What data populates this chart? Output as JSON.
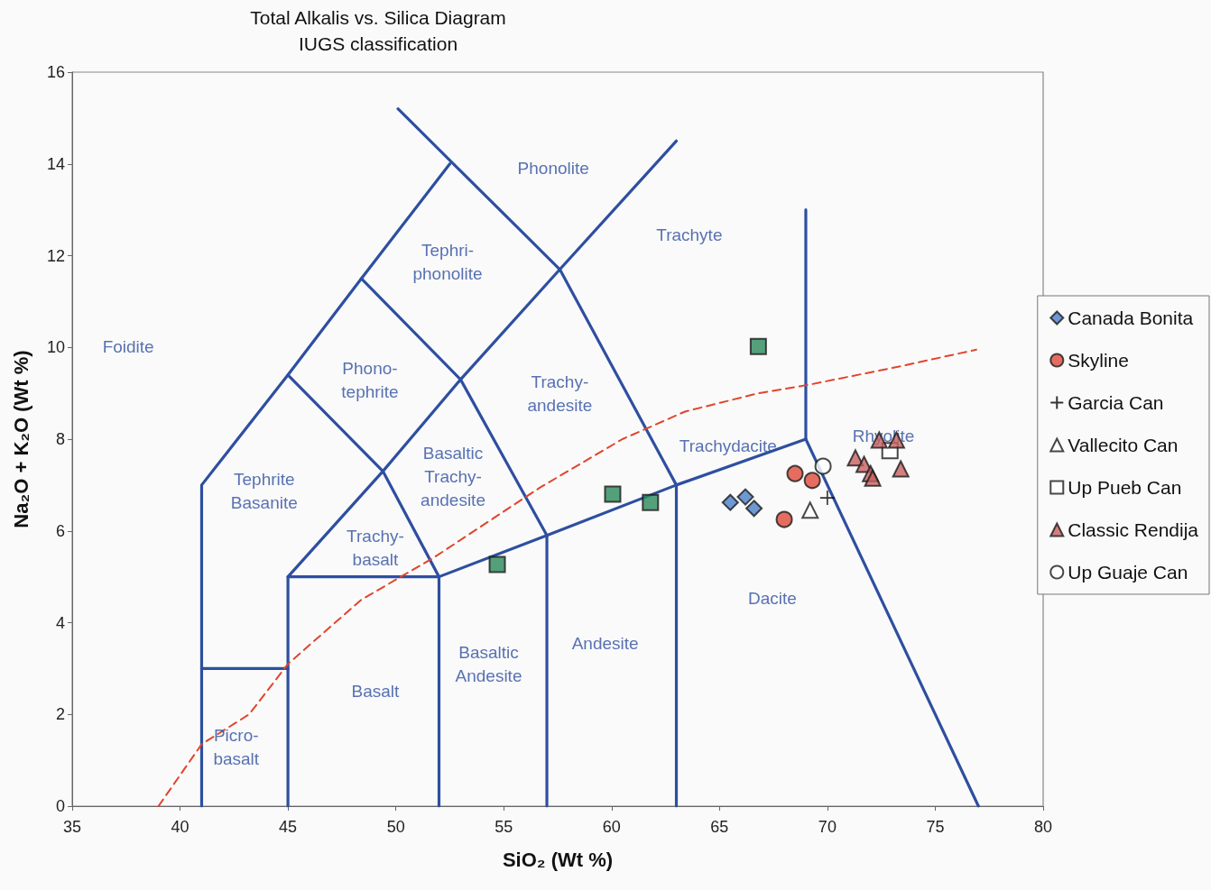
{
  "chart_data": {
    "type": "scatter",
    "title": "Total Alkalis vs. Silica Diagram",
    "subtitle": "IUGS classification",
    "xlabel": "SiO₂ (Wt %)",
    "ylabel": "Na₂O + K₂O (Wt %)",
    "xlim": [
      35,
      80
    ],
    "xticks": [
      35,
      40,
      45,
      50,
      55,
      60,
      65,
      70,
      75,
      80
    ],
    "ylim": [
      0,
      16
    ],
    "yticks": [
      0,
      2,
      4,
      6,
      8,
      10,
      12,
      14,
      16
    ],
    "grid": false,
    "legend": "right",
    "series": [
      {
        "type": "line",
        "color": "#2e4fa0",
        "marker": "none",
        "line_style": "solid",
        "x": [
          41,
          41,
          45,
          48.4,
          52.5
        ],
        "values": [
          0,
          7,
          9.4,
          11.5,
          14
        ]
      },
      {
        "type": "line",
        "color": "#2e4fa0",
        "marker": "none",
        "line_style": "solid",
        "x": [
          41,
          45
        ],
        "values": [
          3,
          3
        ]
      },
      {
        "type": "line",
        "color": "#2e4fa0",
        "marker": "none",
        "line_style": "solid",
        "x": [
          45,
          45,
          52,
          57,
          63,
          69,
          77
        ],
        "values": [
          0,
          5,
          5,
          5.9,
          7,
          8,
          0
        ]
      },
      {
        "type": "line",
        "color": "#2e4fa0",
        "marker": "none",
        "line_style": "solid",
        "x": [
          52,
          52
        ],
        "values": [
          0,
          5
        ]
      },
      {
        "type": "line",
        "color": "#2e4fa0",
        "marker": "none",
        "line_style": "solid",
        "x": [
          57,
          57
        ],
        "values": [
          0,
          5.9
        ]
      },
      {
        "type": "line",
        "color": "#2e4fa0",
        "marker": "none",
        "line_style": "solid",
        "x": [
          63,
          63,
          57.6,
          50.1
        ],
        "values": [
          0,
          7,
          11.7,
          15.2
        ]
      },
      {
        "type": "line",
        "color": "#2e4fa0",
        "marker": "none",
        "line_style": "solid",
        "x": [
          69,
          69
        ],
        "values": [
          8,
          13
        ]
      },
      {
        "type": "line",
        "color": "#2e4fa0",
        "marker": "none",
        "line_style": "solid",
        "x": [
          45,
          49.4,
          53,
          57.6,
          63
        ],
        "values": [
          5,
          7.3,
          9.3,
          11.7,
          14.5
        ]
      },
      {
        "type": "line",
        "color": "#2e4fa0",
        "marker": "none",
        "line_style": "solid",
        "x": [
          45,
          49.4,
          52
        ],
        "values": [
          9.4,
          7.3,
          5
        ]
      },
      {
        "type": "line",
        "color": "#2e4fa0",
        "marker": "none",
        "line_style": "solid",
        "x": [
          48.4,
          53,
          57
        ],
        "values": [
          11.5,
          9.3,
          5.9
        ]
      },
      {
        "type": "line",
        "color": "#e0452c",
        "marker": "none",
        "line_style": "dashed",
        "x": [
          39,
          41,
          43.2,
          45,
          48.4,
          51.7,
          56.7,
          60.5,
          63.4,
          66.8,
          69.3,
          73.5,
          76.9
        ],
        "values": [
          0,
          1.35,
          2.0,
          3.1,
          4.5,
          5.4,
          6.95,
          8.0,
          8.6,
          9.0,
          9.2,
          9.6,
          9.95
        ]
      },
      {
        "type": "scatter",
        "color": "#2a8a5a",
        "marker": "square",
        "x": [
          54.7,
          60.05,
          61.8,
          66.8
        ],
        "values": [
          5.27,
          6.8,
          6.62,
          10.02
        ]
      },
      {
        "name": "Canada Bonita",
        "color": "#4a7fc8",
        "marker": "diamond",
        "x": [
          65.5,
          66.2,
          66.6
        ],
        "values": [
          6.62,
          6.74,
          6.49
        ]
      },
      {
        "name": "Skyline",
        "color": "#e04a3a",
        "marker": "circle",
        "x": [
          68.5,
          69.3,
          68.0
        ],
        "values": [
          7.25,
          7.1,
          6.25
        ]
      },
      {
        "name": "Garcia Can",
        "color": "#000000",
        "marker": "cross",
        "x": [
          70.0
        ],
        "values": [
          6.72
        ]
      },
      {
        "name": "Vallecito Can",
        "color": "#ffffff",
        "marker": "triangle",
        "x": [
          69.2
        ],
        "values": [
          6.45
        ]
      },
      {
        "name": "Up Pueb Can",
        "color": "#ffffff",
        "marker": "square",
        "x": [
          72.9
        ],
        "values": [
          7.75
        ]
      },
      {
        "name": "Classic Rendija",
        "color": "#c96060",
        "marker": "triangle",
        "x": [
          72.4,
          73.2,
          71.3,
          71.7,
          72.0,
          72.1,
          73.4
        ],
        "values": [
          7.98,
          7.98,
          7.59,
          7.45,
          7.25,
          7.15,
          7.35
        ]
      },
      {
        "name": "Up Guaje Can",
        "color": "#ffffff",
        "marker": "circle",
        "x": [
          69.8
        ],
        "values": [
          7.41
        ]
      }
    ],
    "annotations": [
      "Phonolite",
      "Trachyte",
      "Tephri-\nphonolite",
      "Foidite",
      "Phono-\ntephrite",
      "Trachy-\nandesite",
      "Basaltic\nTrachy-\nandesite",
      "Tephrite\nBasanite",
      "Trachy-\nbasalt",
      "Trachydacite",
      "Rhyolite",
      "Dacite",
      "Andesite",
      "Basaltic\nAndesite",
      "Basalt",
      "Picro-\nbasalt"
    ]
  }
}
